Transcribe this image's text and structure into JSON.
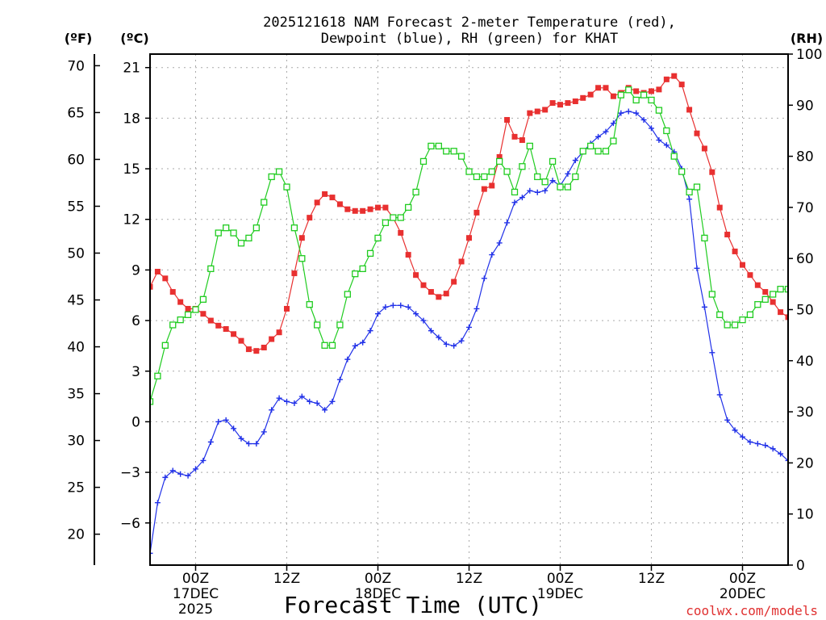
{
  "chart_data": {
    "type": "line",
    "title_line1": "2025121618 NAM Forecast 2-meter Temperature (red),",
    "title_line2": "Dewpoint (blue), RH (green) for KHAT",
    "units": {
      "fahrenheit": "(ºF)",
      "celsius": "(ºC)",
      "rh": "(RH)"
    },
    "xlabel": "Forecast Time (UTC)",
    "credit": "coolwx.com/models",
    "x_range_hours": [
      0,
      84
    ],
    "celsius_range": [
      -8.5,
      21.8
    ],
    "rh_range": [
      0,
      100
    ],
    "celsius_ticks": [
      "21",
      "18",
      "15",
      "12",
      "9",
      "6",
      "3",
      "0",
      "−3",
      "−6"
    ],
    "celsius_tick_values": [
      21,
      18,
      15,
      12,
      9,
      6,
      3,
      0,
      -3,
      -6
    ],
    "fahrenheit_ticks": [
      "70",
      "65",
      "60",
      "55",
      "50",
      "45",
      "40",
      "35",
      "30",
      "25",
      "20"
    ],
    "fahrenheit_tick_values": [
      70,
      65,
      60,
      55,
      50,
      45,
      40,
      35,
      30,
      25,
      20
    ],
    "rh_ticks": [
      "100",
      "90",
      "80",
      "70",
      "60",
      "50",
      "40",
      "30",
      "20",
      "10",
      "0"
    ],
    "rh_tick_values": [
      100,
      90,
      80,
      70,
      60,
      50,
      40,
      30,
      20,
      10,
      0
    ],
    "x_ticks": [
      {
        "hour": 6,
        "label": "00Z",
        "sub1": "17DEC",
        "sub2": "2025"
      },
      {
        "hour": 18,
        "label": "12Z",
        "sub1": "",
        "sub2": ""
      },
      {
        "hour": 30,
        "label": "00Z",
        "sub1": "18DEC",
        "sub2": ""
      },
      {
        "hour": 42,
        "label": "12Z",
        "sub1": "",
        "sub2": ""
      },
      {
        "hour": 54,
        "label": "00Z",
        "sub1": "19DEC",
        "sub2": ""
      },
      {
        "hour": 66,
        "label": "12Z",
        "sub1": "",
        "sub2": ""
      },
      {
        "hour": 78,
        "label": "00Z",
        "sub1": "20DEC",
        "sub2": ""
      }
    ],
    "series": [
      {
        "name": "Temperature",
        "unit": "C",
        "color": "#e83030",
        "marker": "square-filled",
        "values": [
          8.0,
          8.9,
          8.5,
          7.7,
          7.1,
          6.7,
          6.7,
          6.4,
          6.0,
          5.7,
          5.5,
          5.2,
          4.8,
          4.3,
          4.2,
          4.4,
          4.9,
          5.3,
          6.7,
          8.8,
          10.9,
          12.1,
          13.0,
          13.5,
          13.3,
          12.9,
          12.6,
          12.5,
          12.5,
          12.6,
          12.7,
          12.7,
          12.1,
          11.2,
          9.9,
          8.7,
          8.1,
          7.7,
          7.4,
          7.6,
          8.3,
          9.5,
          10.9,
          12.4,
          13.8,
          14.0,
          15.7,
          17.9,
          16.9,
          16.7,
          18.3,
          18.4,
          18.5,
          18.9,
          18.8,
          18.9,
          19.0,
          19.2,
          19.4,
          19.8,
          19.8,
          19.3,
          19.5,
          19.8,
          19.6,
          19.5,
          19.6,
          19.7,
          20.3,
          20.5,
          20.0,
          18.5,
          17.1,
          16.2,
          14.8,
          12.7,
          11.1,
          10.1,
          9.3,
          8.7,
          8.1,
          7.7,
          7.1,
          6.5,
          6.2
        ]
      },
      {
        "name": "Dewpoint",
        "unit": "C",
        "color": "#2030e8",
        "marker": "plus",
        "values": [
          -7.8,
          -4.8,
          -3.3,
          -2.9,
          -3.1,
          -3.2,
          -2.8,
          -2.3,
          -1.2,
          0.0,
          0.1,
          -0.4,
          -1.0,
          -1.3,
          -1.3,
          -0.6,
          0.7,
          1.4,
          1.2,
          1.1,
          1.5,
          1.2,
          1.1,
          0.7,
          1.2,
          2.5,
          3.7,
          4.5,
          4.7,
          5.4,
          6.4,
          6.8,
          6.9,
          6.9,
          6.8,
          6.4,
          6.0,
          5.4,
          5.0,
          4.6,
          4.5,
          4.8,
          5.6,
          6.7,
          8.5,
          9.9,
          10.6,
          11.8,
          13.0,
          13.3,
          13.7,
          13.6,
          13.7,
          14.3,
          14.0,
          14.7,
          15.5,
          16.0,
          16.5,
          16.9,
          17.2,
          17.7,
          18.3,
          18.4,
          18.3,
          17.9,
          17.4,
          16.7,
          16.4,
          16.0,
          15.0,
          13.2,
          9.1,
          6.8,
          4.1,
          1.6,
          0.1,
          -0.5,
          -0.9,
          -1.2,
          -1.3,
          -1.4,
          -1.6,
          -1.9,
          -2.3
        ]
      },
      {
        "name": "RH",
        "unit": "%",
        "color": "#20cc20",
        "marker": "square-open",
        "values": [
          32,
          37,
          43,
          47,
          48,
          49,
          50,
          52,
          58,
          65,
          66,
          65,
          63,
          64,
          66,
          71,
          76,
          77,
          74,
          66,
          60,
          51,
          47,
          43,
          43,
          47,
          53,
          57,
          58,
          61,
          64,
          67,
          68,
          68,
          70,
          73,
          79,
          82,
          82,
          81,
          81,
          80,
          77,
          76,
          76,
          77,
          79,
          77,
          73,
          78,
          82,
          76,
          75,
          79,
          74,
          74,
          76,
          81,
          82,
          81,
          81,
          83,
          92,
          93,
          91,
          92,
          91,
          89,
          85,
          80,
          77,
          73,
          74,
          64,
          53,
          49,
          47,
          47,
          48,
          49,
          51,
          52,
          53,
          54,
          54
        ]
      }
    ]
  }
}
